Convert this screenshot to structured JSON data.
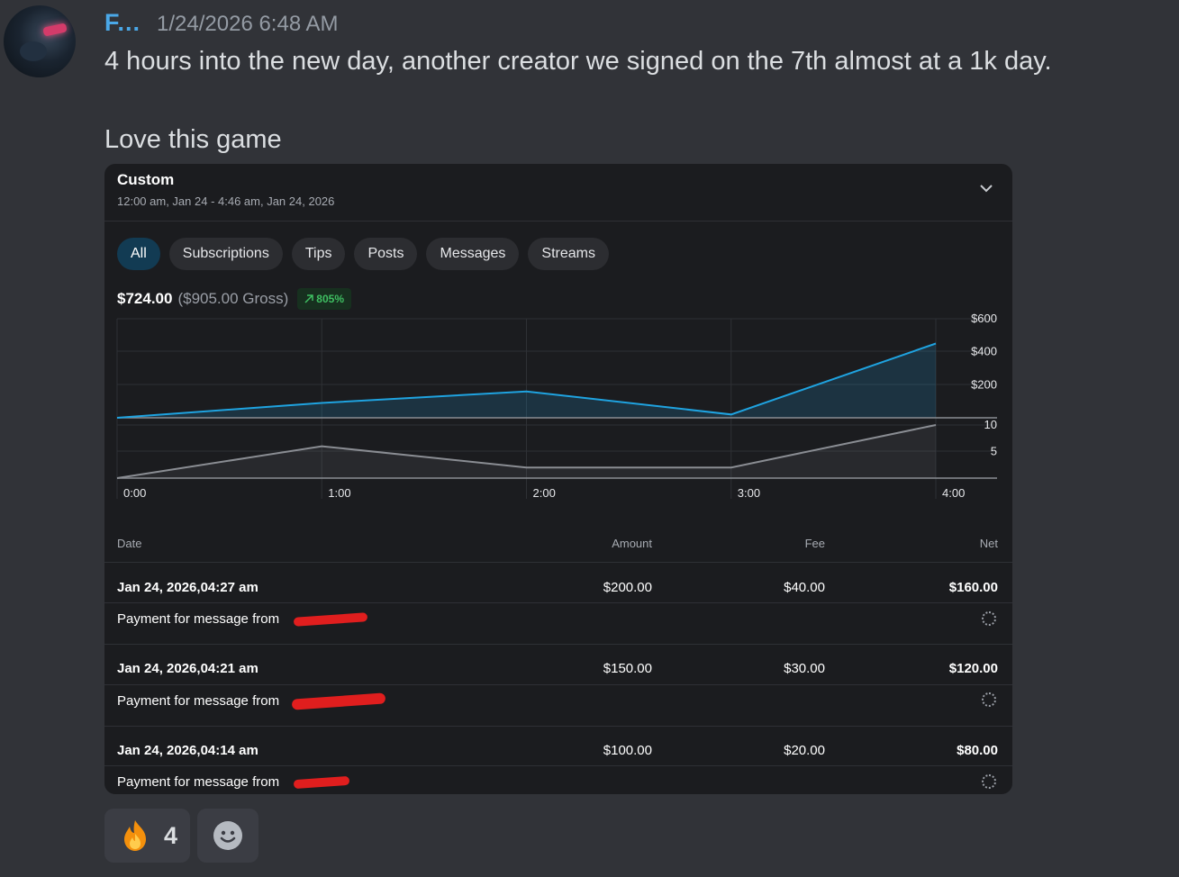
{
  "message": {
    "username": "F...",
    "timestamp": "1/24/2026 6:48 AM",
    "line1": "4 hours into the new day, another creator we signed on the 7th almost at a 1k day.",
    "line2": "Love this game"
  },
  "card": {
    "title": "Custom",
    "range": "12:00 am, Jan 24 - 4:46 am, Jan 24, 2026",
    "filters": [
      "All",
      "Subscriptions",
      "Tips",
      "Posts",
      "Messages",
      "Streams"
    ],
    "active_filter": "All",
    "net_total": "$724.00",
    "gross_total": "($905.00 Gross)",
    "change": "805%"
  },
  "chart_data": {
    "type": "line",
    "x": [
      "0:00",
      "1:00",
      "2:00",
      "3:00",
      "4:00"
    ],
    "series": [
      {
        "values": [
          0,
          90,
          160,
          20,
          450
        ],
        "color": "#1fa3e0",
        "axis_ticks": [
          "$600",
          "$400",
          "$200"
        ],
        "ylim": [
          0,
          600
        ]
      },
      {
        "values": [
          0,
          6,
          2,
          2,
          10
        ],
        "color": "#8a8d93",
        "axis_ticks": [
          "10",
          "5"
        ],
        "ylim": [
          0,
          10
        ]
      }
    ]
  },
  "table": {
    "headers": [
      "Date",
      "Amount",
      "Fee",
      "Net"
    ],
    "rows": [
      {
        "date": "Jan 24, 2026,04:27 am",
        "amount": "$200.00",
        "fee": "$40.00",
        "net": "$160.00",
        "desc": "Payment for message from"
      },
      {
        "date": "Jan 24, 2026,04:21 am",
        "amount": "$150.00",
        "fee": "$30.00",
        "net": "$120.00",
        "desc": "Payment for message from"
      },
      {
        "date": "Jan 24, 2026,04:14 am",
        "amount": "$100.00",
        "fee": "$20.00",
        "net": "$80.00",
        "desc": "Payment for message from"
      }
    ]
  },
  "reactions": [
    {
      "emoji": "🔥",
      "icon": "fire-emoji",
      "count": "4"
    }
  ],
  "add_reaction_icon": "smiley-add-reaction-icon"
}
